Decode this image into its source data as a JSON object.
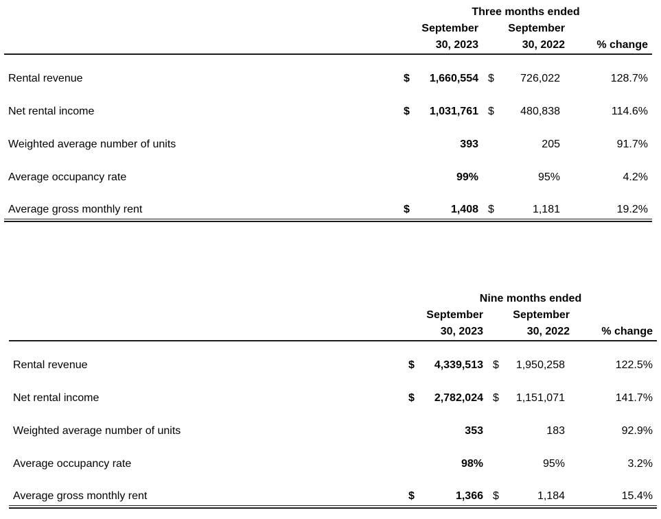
{
  "tables": [
    {
      "period": "Three months ended",
      "col2023": {
        "line1": "September",
        "line2": "30, 2023"
      },
      "col2022": {
        "line1": "September",
        "line2": "30, 2022"
      },
      "pct_label": "% change",
      "rows": [
        {
          "label": "Rental revenue",
          "cur1": "$",
          "val1": "1,660,554",
          "cur2": "$",
          "val2": "726,022",
          "pct": "128.7%"
        },
        {
          "label": "Net rental income",
          "cur1": "$",
          "val1": "1,031,761",
          "cur2": "$",
          "val2": "480,838",
          "pct": "114.6%"
        },
        {
          "label": "Weighted average number of units",
          "cur1": "",
          "val1": "393",
          "cur2": "",
          "val2": "205",
          "pct": "91.7%"
        },
        {
          "label": "Average occupancy rate",
          "cur1": "",
          "val1": "99%",
          "cur2": "",
          "val2": "95%",
          "pct": "4.2%"
        },
        {
          "label": "Average gross monthly rent",
          "cur1": "$",
          "val1": "1,408",
          "cur2": "$",
          "val2": "1,181",
          "pct": "19.2%"
        }
      ]
    },
    {
      "period": "Nine months ended",
      "col2023": {
        "line1": "September",
        "line2": "30, 2023"
      },
      "col2022": {
        "line1": "September",
        "line2": "30, 2022"
      },
      "pct_label": "% change",
      "rows": [
        {
          "label": "Rental revenue",
          "cur1": "$",
          "val1": "4,339,513",
          "cur2": "$",
          "val2": "1,950,258",
          "pct": "122.5%"
        },
        {
          "label": "Net rental income",
          "cur1": "$",
          "val1": "2,782,024",
          "cur2": "$",
          "val2": "1,151,071",
          "pct": "141.7%"
        },
        {
          "label": "Weighted average number of units",
          "cur1": "",
          "val1": "353",
          "cur2": "",
          "val2": "183",
          "pct": "92.9%"
        },
        {
          "label": "Average occupancy rate",
          "cur1": "",
          "val1": "98%",
          "cur2": "",
          "val2": "95%",
          "pct": "3.2%"
        },
        {
          "label": "Average gross monthly rent",
          "cur1": "$",
          "val1": "1,366",
          "cur2": "$",
          "val2": "1,184",
          "pct": "15.4%"
        }
      ]
    }
  ]
}
